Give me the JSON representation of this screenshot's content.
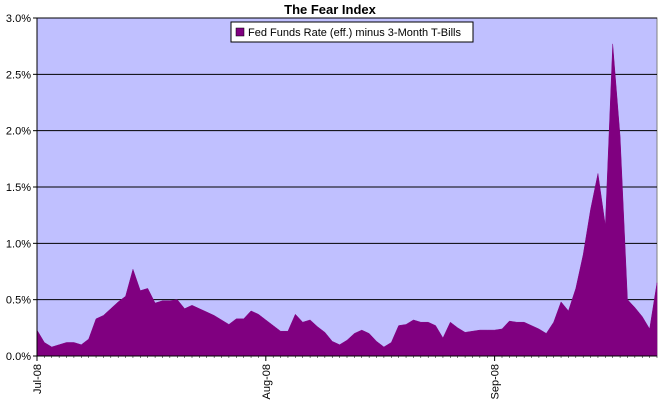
{
  "chart_data": {
    "type": "area",
    "title": "The Fear Index",
    "xlabel": "",
    "ylabel": "",
    "ylim": [
      0,
      3.0
    ],
    "y_tick_labels": [
      "0.0%",
      "0.5%",
      "1.0%",
      "1.5%",
      "2.0%",
      "2.5%",
      "3.0%"
    ],
    "y_tick_values": [
      0,
      0.5,
      1.0,
      1.5,
      2.0,
      2.5,
      3.0
    ],
    "x_tick_labels": [
      "Jul-08",
      "Aug-08",
      "Sep-08"
    ],
    "x_tick_dates": [
      "2008-07-01",
      "2008-08-01",
      "2008-09-01"
    ],
    "x_range": [
      "2008-07-01",
      "2008-09-23"
    ],
    "grid": "horizontal",
    "legend_position": "top-center",
    "colors": {
      "plot_background": "#C0C0FF",
      "series_fill": "#800080",
      "gridline": "#000000"
    },
    "series": [
      {
        "name": "Fed Funds Rate (eff.) minus 3-Month T-Bills",
        "x": [
          "2008-07-01",
          "2008-07-02",
          "2008-07-03",
          "2008-07-04",
          "2008-07-05",
          "2008-07-06",
          "2008-07-07",
          "2008-07-08",
          "2008-07-09",
          "2008-07-10",
          "2008-07-11",
          "2008-07-12",
          "2008-07-13",
          "2008-07-14",
          "2008-07-15",
          "2008-07-16",
          "2008-07-17",
          "2008-07-18",
          "2008-07-19",
          "2008-07-20",
          "2008-07-21",
          "2008-07-22",
          "2008-07-23",
          "2008-07-24",
          "2008-07-25",
          "2008-07-26",
          "2008-07-27",
          "2008-07-28",
          "2008-07-29",
          "2008-07-30",
          "2008-07-31",
          "2008-08-01",
          "2008-08-02",
          "2008-08-03",
          "2008-08-04",
          "2008-08-05",
          "2008-08-06",
          "2008-08-07",
          "2008-08-08",
          "2008-08-09",
          "2008-08-10",
          "2008-08-11",
          "2008-08-12",
          "2008-08-13",
          "2008-08-14",
          "2008-08-15",
          "2008-08-16",
          "2008-08-17",
          "2008-08-18",
          "2008-08-19",
          "2008-08-20",
          "2008-08-21",
          "2008-08-22",
          "2008-08-23",
          "2008-08-24",
          "2008-08-25",
          "2008-08-26",
          "2008-08-27",
          "2008-08-28",
          "2008-08-29",
          "2008-08-30",
          "2008-08-31",
          "2008-09-01",
          "2008-09-02",
          "2008-09-03",
          "2008-09-04",
          "2008-09-05",
          "2008-09-06",
          "2008-09-07",
          "2008-09-08",
          "2008-09-09",
          "2008-09-10",
          "2008-09-11",
          "2008-09-12",
          "2008-09-13",
          "2008-09-14",
          "2008-09-15",
          "2008-09-16",
          "2008-09-17",
          "2008-09-18",
          "2008-09-19",
          "2008-09-20",
          "2008-09-21",
          "2008-09-22",
          "2008-09-23"
        ],
        "values": [
          0.23,
          0.12,
          0.08,
          0.1,
          0.12,
          0.12,
          0.1,
          0.15,
          0.33,
          0.36,
          0.42,
          0.48,
          0.53,
          0.77,
          0.58,
          0.6,
          0.47,
          0.49,
          0.49,
          0.5,
          0.42,
          0.45,
          0.42,
          0.39,
          0.36,
          0.32,
          0.28,
          0.33,
          0.33,
          0.4,
          0.37,
          0.32,
          0.27,
          0.22,
          0.22,
          0.37,
          0.3,
          0.32,
          0.26,
          0.21,
          0.13,
          0.1,
          0.14,
          0.2,
          0.23,
          0.2,
          0.13,
          0.08,
          0.12,
          0.27,
          0.28,
          0.32,
          0.3,
          0.3,
          0.27,
          0.16,
          0.3,
          0.25,
          0.21,
          0.22,
          0.23,
          0.23,
          0.23,
          0.24,
          0.31,
          0.3,
          0.3,
          0.27,
          0.24,
          0.2,
          0.3,
          0.48,
          0.4,
          0.6,
          0.9,
          1.3,
          1.62,
          1.16,
          2.77,
          1.95,
          0.5,
          0.43,
          0.35,
          0.24,
          0.65
        ]
      }
    ]
  }
}
